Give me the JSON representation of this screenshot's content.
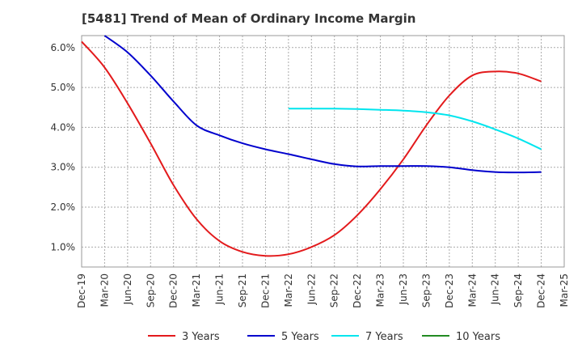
{
  "chart_data": {
    "type": "line",
    "title": "[5481]  Trend of Mean of Ordinary Income Margin",
    "xlabel": "",
    "ylabel": "",
    "x": [
      "Dec-19",
      "Mar-20",
      "Jun-20",
      "Sep-20",
      "Dec-20",
      "Mar-21",
      "Jun-21",
      "Sep-21",
      "Dec-21",
      "Mar-22",
      "Jun-22",
      "Sep-22",
      "Dec-22",
      "Mar-23",
      "Jun-23",
      "Sep-23",
      "Dec-23",
      "Mar-24",
      "Jun-24",
      "Sep-24",
      "Dec-24",
      "Mar-25"
    ],
    "y_ticks": [
      "1.0%",
      "2.0%",
      "3.0%",
      "4.0%",
      "5.0%",
      "6.0%"
    ],
    "ylim": [
      0.5,
      6.3
    ],
    "grid": true,
    "legend_position": "bottom",
    "series": [
      {
        "name": "3 Years",
        "color": "#e31a1c",
        "values": [
          6.15,
          5.5,
          4.6,
          3.6,
          2.55,
          1.7,
          1.15,
          0.88,
          0.78,
          0.82,
          1.0,
          1.3,
          1.8,
          2.45,
          3.2,
          4.05,
          4.8,
          5.3,
          5.4,
          5.35,
          5.15,
          null
        ]
      },
      {
        "name": "5 Years",
        "color": "#0000cd",
        "values": [
          null,
          6.3,
          5.88,
          5.3,
          4.65,
          4.05,
          3.8,
          3.6,
          3.45,
          3.33,
          3.2,
          3.08,
          3.02,
          3.03,
          3.03,
          3.03,
          3.0,
          2.93,
          2.88,
          2.87,
          2.88,
          null
        ]
      },
      {
        "name": "7 Years",
        "color": "#00e5ee",
        "values": [
          null,
          null,
          null,
          null,
          null,
          null,
          null,
          null,
          null,
          4.47,
          4.47,
          4.47,
          4.46,
          4.44,
          4.42,
          4.38,
          4.3,
          4.15,
          3.95,
          3.72,
          3.45,
          null
        ]
      },
      {
        "name": "10 Years",
        "color": "#228b22",
        "values": [
          null,
          null,
          null,
          null,
          null,
          null,
          null,
          null,
          null,
          null,
          null,
          null,
          null,
          null,
          null,
          null,
          null,
          null,
          null,
          null,
          null,
          null
        ]
      }
    ]
  }
}
